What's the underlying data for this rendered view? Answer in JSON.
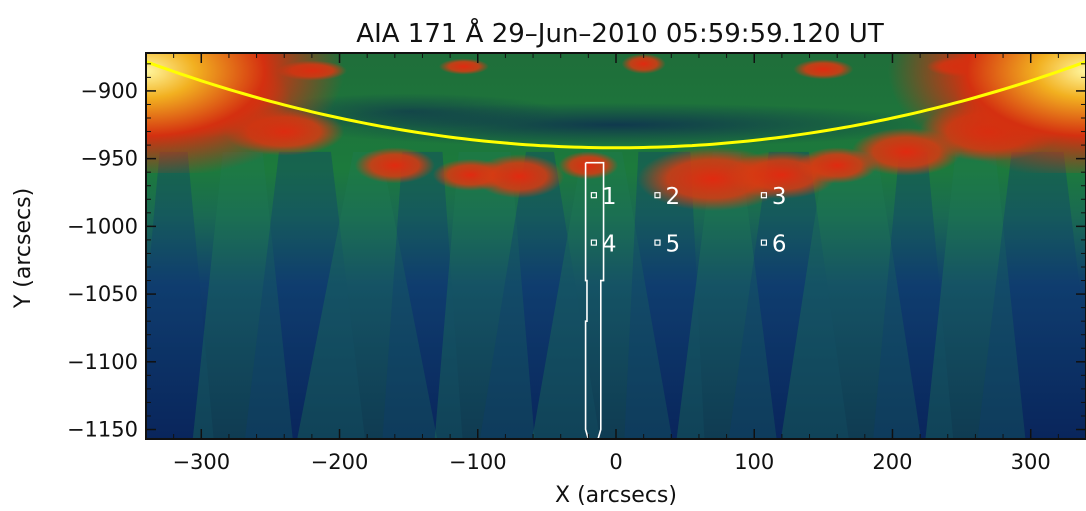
{
  "title": "AIA 171 Å 29–Jun–2010 05:59:59.120 UT",
  "x_axis": {
    "label": "X (arcsecs)",
    "range": [
      -340,
      340
    ],
    "ticks": [
      {
        "value": -300,
        "label": "−300"
      },
      {
        "value": -200,
        "label": "−200"
      },
      {
        "value": -100,
        "label": "−100"
      },
      {
        "value": 0,
        "label": "0"
      },
      {
        "value": 100,
        "label": "100"
      },
      {
        "value": 200,
        "label": "200"
      },
      {
        "value": 300,
        "label": "300"
      }
    ]
  },
  "y_axis": {
    "label": "Y (arcsecs)",
    "range": [
      -1157,
      -872
    ],
    "ticks": [
      {
        "value": -900,
        "label": "−900"
      },
      {
        "value": -950,
        "label": "−950"
      },
      {
        "value": -1000,
        "label": "−1000"
      },
      {
        "value": -1050,
        "label": "−1050"
      },
      {
        "value": -1100,
        "label": "−1100"
      },
      {
        "value": -1150,
        "label": "−1150"
      }
    ]
  },
  "points": [
    {
      "label": "1",
      "x": -16,
      "y": -977
    },
    {
      "label": "2",
      "x": 30,
      "y": -977
    },
    {
      "label": "3",
      "x": 107,
      "y": -977
    },
    {
      "label": "4",
      "x": -16,
      "y": -1012
    },
    {
      "label": "5",
      "x": 30,
      "y": -1012
    },
    {
      "label": "6",
      "x": 107,
      "y": -1012
    }
  ],
  "colors": {
    "limb": "#ffff00",
    "slit": "#ffffff",
    "markers": "#ffffff"
  }
}
